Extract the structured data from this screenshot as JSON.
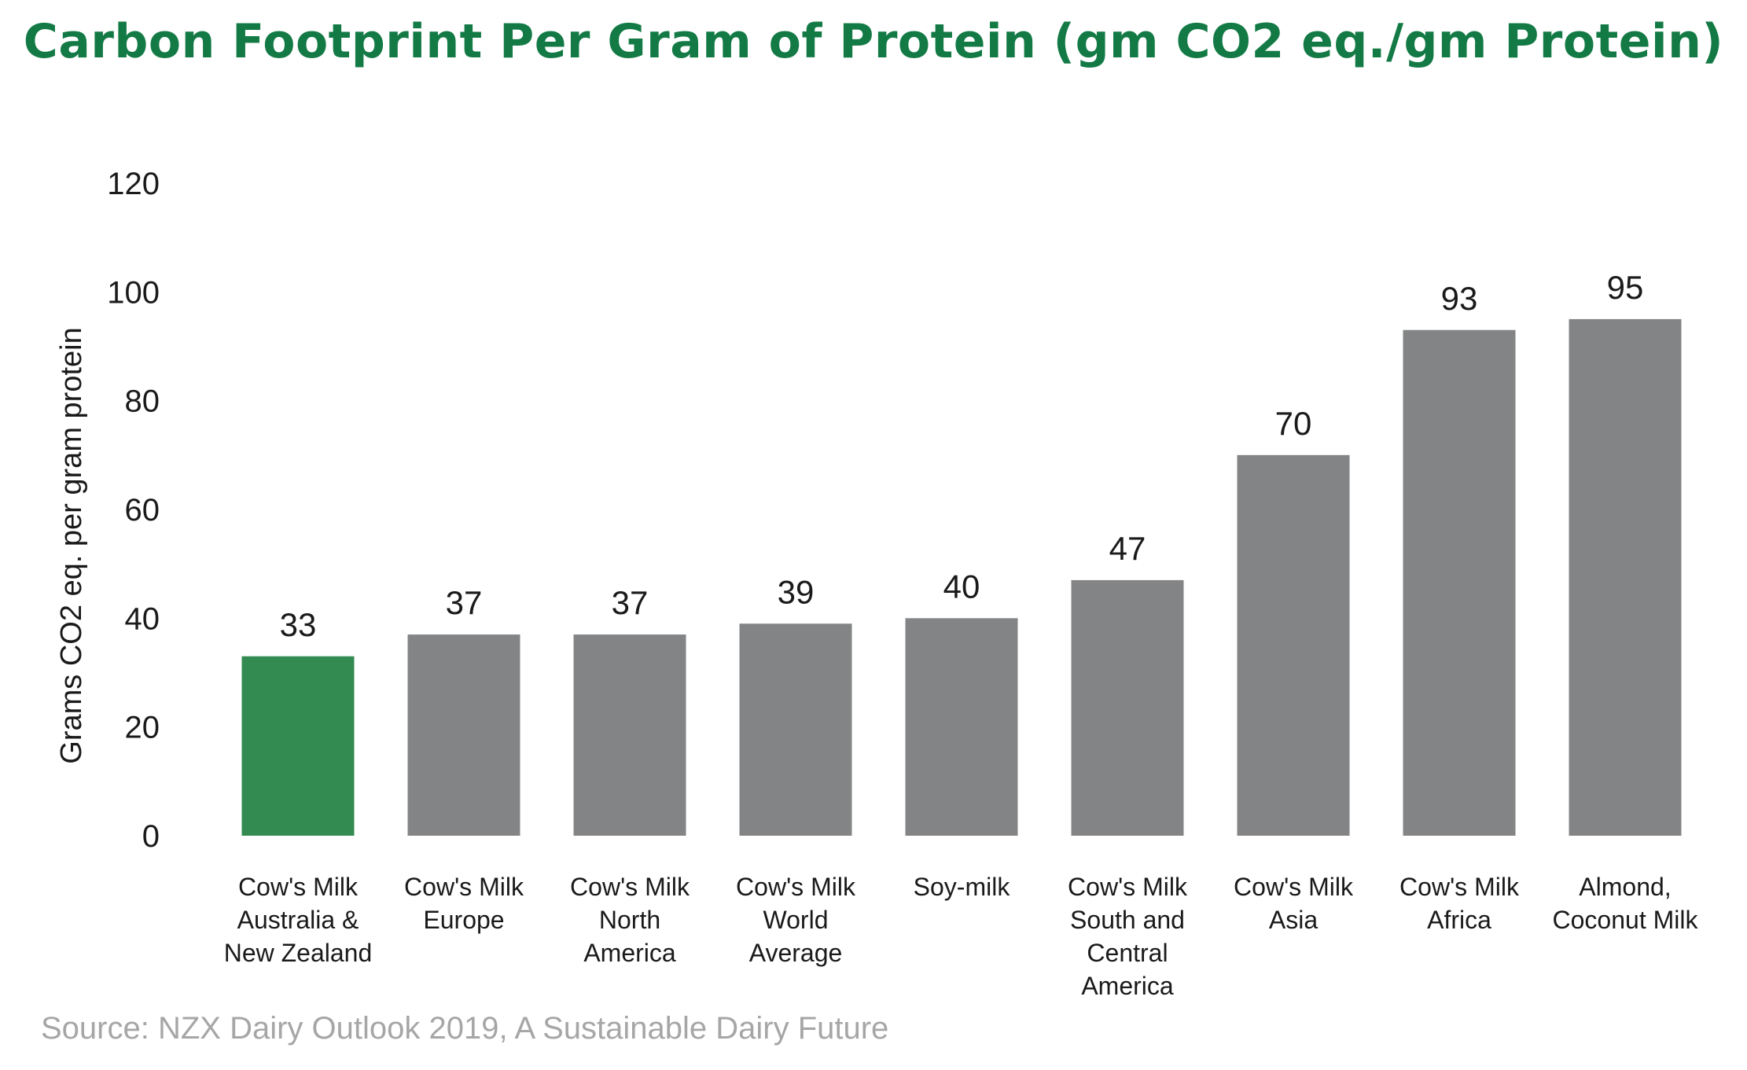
{
  "chart_data": {
    "type": "bar",
    "title": "Carbon Footprint Per Gram of Protein (gm CO2 eq./gm Protein)",
    "xlabel": "",
    "ylabel": "Grams CO2 eq. per gram protein",
    "ylim": [
      0,
      120
    ],
    "yticks": [
      0,
      20,
      40,
      60,
      80,
      100,
      120
    ],
    "grid": false,
    "categories": [
      [
        "Cow's Milk",
        "Australia &",
        "New Zealand"
      ],
      [
        "Cow's Milk",
        "Europe"
      ],
      [
        "Cow's Milk",
        "North",
        "America"
      ],
      [
        "Cow's Milk",
        "World",
        "Average"
      ],
      [
        "Soy-milk"
      ],
      [
        "Cow's Milk",
        "South and",
        "Central",
        "America"
      ],
      [
        "Cow's Milk",
        "Asia"
      ],
      [
        "Cow's Milk",
        "Africa"
      ],
      [
        "Almond,",
        "Coconut Milk"
      ]
    ],
    "values": [
      33,
      37,
      37,
      39,
      40,
      47,
      70,
      93,
      95
    ],
    "data_labels": [
      "33",
      "37",
      "37",
      "39",
      "40",
      "47",
      "70",
      "93",
      "95"
    ],
    "bar_colors": [
      "#338b52",
      "#838485",
      "#838485",
      "#838485",
      "#838485",
      "#838485",
      "#838485",
      "#838485",
      "#838485"
    ]
  },
  "source": "Source: NZX Dairy Outlook 2019, A Sustainable Dairy Future"
}
